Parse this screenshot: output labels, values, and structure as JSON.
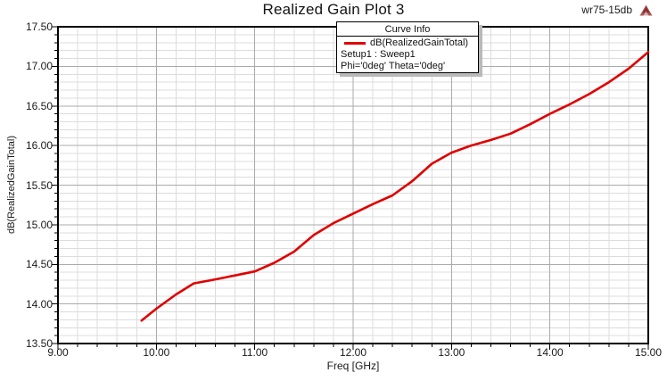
{
  "header": {
    "title": "Realized Gain Plot 3",
    "annotation": "wr75-15db",
    "logo_icon": "ansoft-triangle-logo",
    "logo_color": "#96393b"
  },
  "legend": {
    "title": "Curve Info",
    "entries": [
      {
        "label": "dB(RealizedGainTotal)",
        "color": "#e00000",
        "swatch": "red-line"
      }
    ],
    "lines": [
      "Setup1 : Sweep1",
      "Phi='0deg' Theta='0deg'"
    ]
  },
  "chart_data": {
    "type": "line",
    "title": "Realized Gain Plot 3",
    "xlabel": "Freq [GHz]",
    "ylabel": "dB(RealizedGainTotal)",
    "xlim": [
      9.0,
      15.0
    ],
    "ylim": [
      13.5,
      17.5
    ],
    "x_major_step": 1.0,
    "x_minor_step": 0.2,
    "y_major_step": 0.5,
    "y_minor_step": 0.1,
    "x_tick_labels": [
      "9.00",
      "10.00",
      "11.00",
      "12.00",
      "13.00",
      "14.00",
      "15.00"
    ],
    "y_tick_labels": [
      "13.50",
      "14.00",
      "14.50",
      "15.00",
      "15.50",
      "16.00",
      "16.50",
      "17.00",
      "17.50"
    ],
    "grid": "major+minor",
    "legend_position": "top-center",
    "colors": {
      "curve": "#e00000",
      "grid_minor": "#dcdcdc",
      "grid_major": "#ababab",
      "frame": "#000000"
    },
    "series": [
      {
        "name": "dB(RealizedGainTotal)",
        "color": "#e00000",
        "x": [
          9.85,
          10.0,
          10.2,
          10.38,
          10.6,
          10.8,
          11.0,
          11.2,
          11.4,
          11.6,
          11.8,
          12.0,
          12.2,
          12.4,
          12.6,
          12.8,
          13.0,
          13.2,
          13.4,
          13.6,
          13.8,
          14.0,
          14.2,
          14.4,
          14.6,
          14.8,
          15.0
        ],
        "y": [
          13.79,
          13.94,
          14.12,
          14.26,
          14.31,
          14.36,
          14.41,
          14.52,
          14.66,
          14.87,
          15.02,
          15.14,
          15.26,
          15.37,
          15.55,
          15.77,
          15.91,
          16.0,
          16.07,
          16.15,
          16.27,
          16.4,
          16.52,
          16.65,
          16.8,
          16.97,
          17.18
        ]
      }
    ]
  }
}
